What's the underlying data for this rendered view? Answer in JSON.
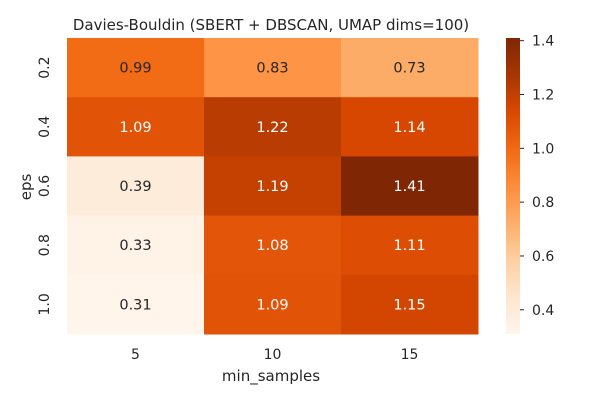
{
  "chart_data": {
    "type": "heatmap",
    "title": "Davies-Bouldin (SBERT + DBSCAN, UMAP dims=100)",
    "xlabel": "min_samples",
    "ylabel": "eps",
    "x_categories": [
      "5",
      "10",
      "15"
    ],
    "y_categories": [
      "0.2",
      "0.4",
      "0.6",
      "0.8",
      "1.0"
    ],
    "values": [
      [
        0.99,
        0.83,
        0.73
      ],
      [
        1.09,
        1.22,
        1.14
      ],
      [
        0.39,
        1.19,
        1.41
      ],
      [
        0.33,
        1.08,
        1.11
      ],
      [
        0.31,
        1.09,
        1.15
      ]
    ],
    "value_labels": [
      [
        "0.99",
        "0.83",
        "0.73"
      ],
      [
        "1.09",
        "1.22",
        "1.14"
      ],
      [
        "0.39",
        "1.19",
        "1.41"
      ],
      [
        "0.33",
        "1.08",
        "1.11"
      ],
      [
        "0.31",
        "1.09",
        "1.15"
      ]
    ],
    "colorbar": {
      "min": 0.31,
      "max": 1.41,
      "ticks": [
        "0.4",
        "0.6",
        "0.8",
        "1.0",
        "1.2",
        "1.4"
      ],
      "colormap": "Oranges",
      "stops": [
        "#fff5eb",
        "#fee6ce",
        "#fdd0a2",
        "#fdae6b",
        "#fd8d3c",
        "#f16913",
        "#d94801",
        "#a63603",
        "#7f2704"
      ]
    },
    "grid": false
  }
}
